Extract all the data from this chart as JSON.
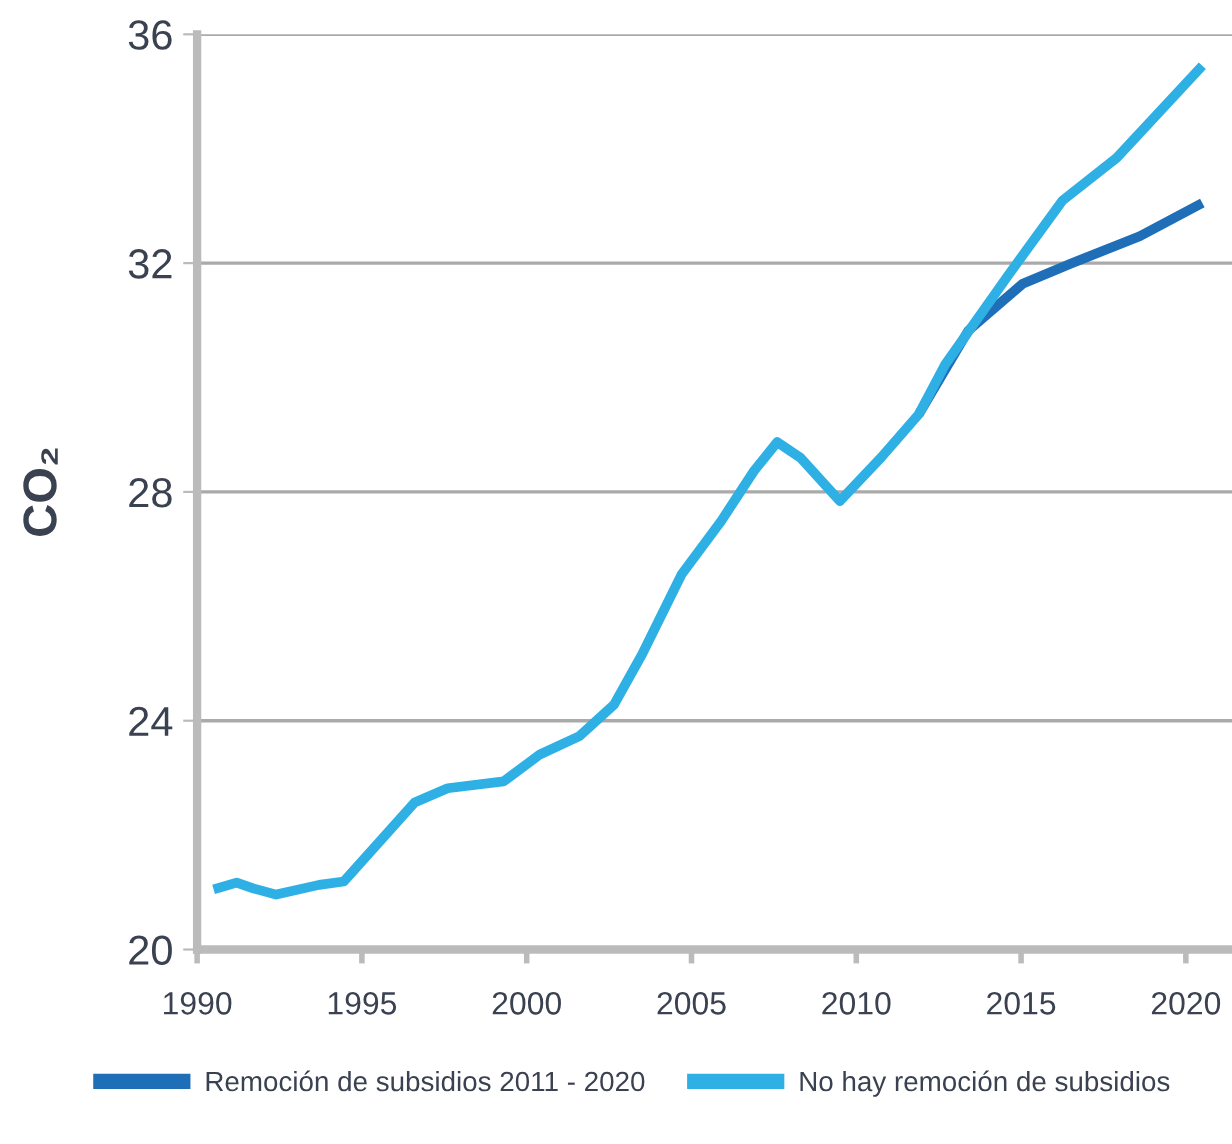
{
  "chart_data": {
    "type": "line",
    "ylabel": "CO₂",
    "series": [
      {
        "name": "Remoción de subsidios 2011 - 2020",
        "color": "#1f6fb8",
        "x": [
          2011.9,
          2013.4,
          2015.05,
          2016.5,
          2018.6,
          2020.5
        ],
        "values": [
          29.36,
          30.82,
          31.64,
          31.99,
          32.47,
          33.05
        ]
      },
      {
        "name": "No hay remoción de subsidios",
        "color": "#2eb0e4",
        "x": [
          1990.5,
          1991.2,
          1991.7,
          1992.4,
          1993.7,
          1994.45,
          1996.6,
          1997.6,
          1999.3,
          2000.4,
          2001.6,
          2002.65,
          2003.5,
          2004.7,
          2005.9,
          2006.9,
          2007.6,
          2008.3,
          2009.5,
          2010.75,
          2011.9,
          2012.7,
          2014.6,
          2016.25,
          2017.9,
          2020.5
        ],
        "values": [
          21.05,
          21.17,
          21.07,
          20.96,
          21.13,
          21.19,
          22.57,
          22.82,
          22.94,
          23.41,
          23.73,
          24.28,
          25.16,
          26.56,
          27.49,
          28.37,
          28.87,
          28.6,
          27.84,
          28.6,
          29.36,
          30.23,
          31.78,
          33.09,
          33.84,
          35.45
        ]
      }
    ],
    "xlim": [
      1990,
      2021.4
    ],
    "xticks": [
      1990,
      1995,
      2000,
      2005,
      2010,
      2015,
      2020
    ],
    "ylim": [
      20,
      36
    ],
    "yticks": [
      20,
      24,
      28,
      32,
      36
    ],
    "grid": "y",
    "legend": "bottom",
    "marker": "none",
    "line_style": "solid"
  }
}
